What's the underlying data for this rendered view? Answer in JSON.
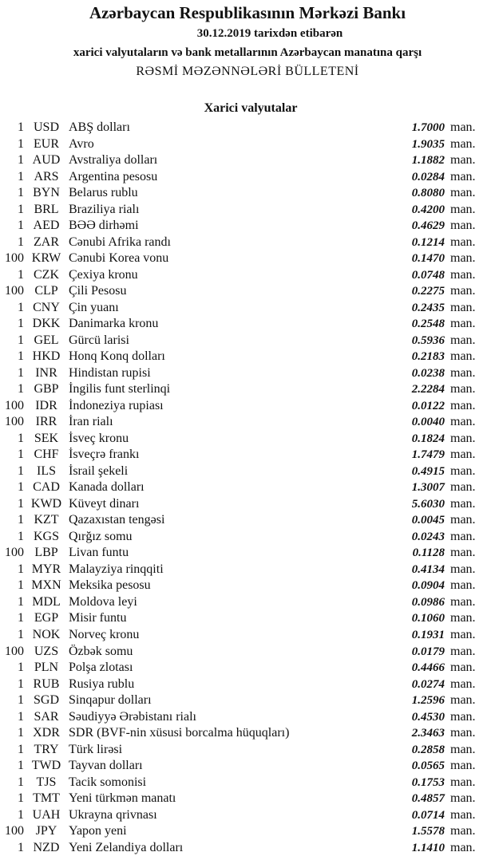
{
  "header": {
    "title": "Azərbaycan Respublikasının Mərkəzi Bankı",
    "date_line": "30.12.2019  tarixdən etibarən",
    "subtitle": "xarici valyutaların və bank metallarının Azərbaycan manatına qarşı",
    "bulletin": "RƏSMİ MƏZƏNNƏLƏRİ BÜLLETENİ"
  },
  "section_title": "Xarici valyutalar",
  "currency_suffix": "man.",
  "rates": [
    {
      "unit": "1",
      "code": "USD",
      "name": "ABŞ dolları",
      "rate": "1.7000"
    },
    {
      "unit": "1",
      "code": "EUR",
      "name": "Avro",
      "rate": "1.9035"
    },
    {
      "unit": "1",
      "code": "AUD",
      "name": "Avstraliya dolları",
      "rate": "1.1882"
    },
    {
      "unit": "1",
      "code": "ARS",
      "name": "Argentina pesosu",
      "rate": "0.0284"
    },
    {
      "unit": "1",
      "code": "BYN",
      "name": "Belarus rublu",
      "rate": "0.8080"
    },
    {
      "unit": "1",
      "code": "BRL",
      "name": "Braziliya rialı",
      "rate": "0.4200"
    },
    {
      "unit": "1",
      "code": "AED",
      "name": "BƏƏ dirhəmi",
      "rate": "0.4629"
    },
    {
      "unit": "1",
      "code": "ZAR",
      "name": "Cənubi Afrika randı",
      "rate": "0.1214"
    },
    {
      "unit": "100",
      "code": "KRW",
      "name": "Cənubi Korea vonu",
      "rate": "0.1470"
    },
    {
      "unit": "1",
      "code": "CZK",
      "name": "Çexiya kronu",
      "rate": "0.0748"
    },
    {
      "unit": "100",
      "code": "CLP",
      "name": "Çili Pesosu",
      "rate": "0.2275"
    },
    {
      "unit": "1",
      "code": "CNY",
      "name": "Çin yuanı",
      "rate": "0.2435"
    },
    {
      "unit": "1",
      "code": "DKK",
      "name": "Danimarka kronu",
      "rate": "0.2548"
    },
    {
      "unit": "1",
      "code": "GEL",
      "name": "Gürcü larisi",
      "rate": "0.5936"
    },
    {
      "unit": "1",
      "code": "HKD",
      "name": "Honq Konq dolları",
      "rate": "0.2183"
    },
    {
      "unit": "1",
      "code": "INR",
      "name": "Hindistan rupisi",
      "rate": "0.0238"
    },
    {
      "unit": "1",
      "code": "GBP",
      "name": "İngilis funt sterlinqi",
      "rate": "2.2284"
    },
    {
      "unit": "100",
      "code": "IDR",
      "name": "İndoneziya rupiası",
      "rate": "0.0122"
    },
    {
      "unit": "100",
      "code": "IRR",
      "name": "İran rialı",
      "rate": "0.0040"
    },
    {
      "unit": "1",
      "code": "SEK",
      "name": "İsveç kronu",
      "rate": "0.1824"
    },
    {
      "unit": "1",
      "code": "CHF",
      "name": "İsveçrə frankı",
      "rate": "1.7479"
    },
    {
      "unit": "1",
      "code": "ILS",
      "name": "İsrail şekeli",
      "rate": "0.4915"
    },
    {
      "unit": "1",
      "code": "CAD",
      "name": "Kanada dolları",
      "rate": "1.3007"
    },
    {
      "unit": "1",
      "code": "KWD",
      "name": "Küveyt dinarı",
      "rate": "5.6030"
    },
    {
      "unit": "1",
      "code": "KZT",
      "name": "Qazaxıstan tengəsi",
      "rate": "0.0045"
    },
    {
      "unit": "1",
      "code": "KGS",
      "name": "Qırğız somu",
      "rate": "0.0243"
    },
    {
      "unit": "100",
      "code": "LBP",
      "name": "Livan funtu",
      "rate": "0.1128"
    },
    {
      "unit": "1",
      "code": "MYR",
      "name": "Malayziya rinqqiti",
      "rate": "0.4134"
    },
    {
      "unit": "1",
      "code": "MXN",
      "name": "Meksika pesosu",
      "rate": "0.0904"
    },
    {
      "unit": "1",
      "code": "MDL",
      "name": "Moldova leyi",
      "rate": "0.0986"
    },
    {
      "unit": "1",
      "code": "EGP",
      "name": "Misir funtu",
      "rate": "0.1060"
    },
    {
      "unit": "1",
      "code": "NOK",
      "name": "Norveç kronu",
      "rate": "0.1931"
    },
    {
      "unit": "100",
      "code": "UZS",
      "name": "Özbək somu",
      "rate": "0.0179"
    },
    {
      "unit": "1",
      "code": "PLN",
      "name": "Polşa zlotası",
      "rate": "0.4466"
    },
    {
      "unit": "1",
      "code": "RUB",
      "name": "Rusiya rublu",
      "rate": "0.0274"
    },
    {
      "unit": "1",
      "code": "SGD",
      "name": "Sinqapur dolları",
      "rate": "1.2596"
    },
    {
      "unit": "1",
      "code": "SAR",
      "name": "Səudiyyə Ərəbistanı rialı",
      "rate": "0.4530"
    },
    {
      "unit": "1",
      "code": "XDR",
      "name": "SDR (BVF-nin xüsusi borcalma hüquqları)",
      "rate": "2.3463"
    },
    {
      "unit": "1",
      "code": "TRY",
      "name": "Türk lirəsi",
      "rate": "0.2858"
    },
    {
      "unit": "1",
      "code": "TWD",
      "name": "Tayvan dolları",
      "rate": "0.0565"
    },
    {
      "unit": "1",
      "code": "TJS",
      "name": "Tacik somonisi",
      "rate": "0.1753"
    },
    {
      "unit": "1",
      "code": "TMT",
      "name": "Yeni türkmən manatı",
      "rate": "0.4857"
    },
    {
      "unit": "1",
      "code": "UAH",
      "name": "Ukrayna qrivnası",
      "rate": "0.0714"
    },
    {
      "unit": "100",
      "code": "JPY",
      "name": "Yapon yeni",
      "rate": "1.5578"
    },
    {
      "unit": "1",
      "code": "NZD",
      "name": "Yeni Zelandiya dolları",
      "rate": "1.1410"
    }
  ]
}
